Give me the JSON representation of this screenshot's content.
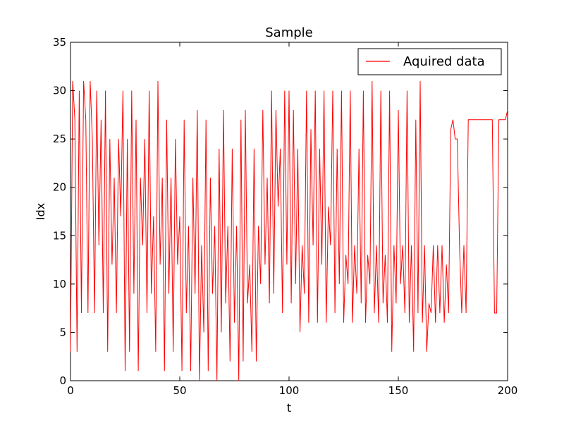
{
  "chart_data": {
    "type": "line",
    "title": "Sample",
    "xlabel": "t",
    "ylabel": "Idx",
    "xlim": [
      0,
      200
    ],
    "ylim": [
      0,
      35
    ],
    "xticks": [
      "0",
      "50",
      "100",
      "150",
      "200"
    ],
    "yticks": [
      "0",
      "5",
      "10",
      "15",
      "20",
      "25",
      "30",
      "35"
    ],
    "grid": false,
    "legend_position": "top-right",
    "line_color": "#ff0000",
    "series": [
      {
        "name": "Aquired data",
        "x": [
          0,
          1,
          2,
          3,
          4,
          5,
          6,
          7,
          8,
          9,
          10,
          11,
          12,
          13,
          14,
          15,
          16,
          17,
          18,
          19,
          20,
          21,
          22,
          23,
          24,
          25,
          26,
          27,
          28,
          29,
          30,
          31,
          32,
          33,
          34,
          35,
          36,
          37,
          38,
          39,
          40,
          41,
          42,
          43,
          44,
          45,
          46,
          47,
          48,
          49,
          50,
          51,
          52,
          53,
          54,
          55,
          56,
          57,
          58,
          59,
          60,
          61,
          62,
          63,
          64,
          65,
          66,
          67,
          68,
          69,
          70,
          71,
          72,
          73,
          74,
          75,
          76,
          77,
          78,
          79,
          80,
          81,
          82,
          83,
          84,
          85,
          86,
          87,
          88,
          89,
          90,
          91,
          92,
          93,
          94,
          95,
          96,
          97,
          98,
          99,
          100,
          101,
          102,
          103,
          104,
          105,
          106,
          107,
          108,
          109,
          110,
          111,
          112,
          113,
          114,
          115,
          116,
          117,
          118,
          119,
          120,
          121,
          122,
          123,
          124,
          125,
          126,
          127,
          128,
          129,
          130,
          131,
          132,
          133,
          134,
          135,
          136,
          137,
          138,
          139,
          140,
          141,
          142,
          143,
          144,
          145,
          146,
          147,
          148,
          149,
          150,
          151,
          152,
          153,
          154,
          155,
          156,
          157,
          158,
          159,
          160,
          161,
          162,
          163,
          164,
          165,
          166,
          167,
          168,
          169,
          170,
          171,
          172,
          173,
          174,
          175,
          176,
          177,
          178,
          179,
          180,
          181,
          182,
          183,
          184,
          185,
          186,
          187,
          188,
          189,
          190,
          191,
          192,
          193,
          194,
          195,
          196,
          197,
          198,
          199,
          200
        ],
        "values": [
          3,
          31,
          27,
          3,
          30,
          7,
          31,
          27,
          7,
          31,
          25,
          7,
          30,
          14,
          27,
          7,
          30,
          3,
          25,
          12,
          21,
          7,
          25,
          17,
          30,
          1,
          25,
          3,
          30,
          9,
          27,
          1,
          21,
          14,
          25,
          7,
          30,
          9,
          17,
          3,
          31,
          12,
          21,
          1,
          27,
          9,
          21,
          3,
          25,
          12,
          17,
          1,
          27,
          7,
          16,
          1,
          21,
          9,
          28,
          0,
          14,
          5,
          27,
          1,
          21,
          9,
          16,
          0,
          24,
          5,
          28,
          8,
          16,
          2,
          24,
          6,
          16,
          0,
          27,
          2,
          28,
          8,
          12,
          3,
          24,
          2,
          16,
          10,
          28,
          12,
          21,
          8,
          30,
          9,
          28,
          18,
          24,
          7,
          30,
          12,
          30,
          8,
          28,
          10,
          24,
          5,
          14,
          9,
          30,
          6,
          26,
          14,
          30,
          6,
          24,
          12,
          30,
          6,
          18,
          14,
          30,
          7,
          24,
          10,
          30,
          6,
          13,
          10,
          30,
          6,
          14,
          9,
          24,
          8,
          30,
          6,
          13,
          10,
          31,
          7,
          14,
          6,
          30,
          8,
          13,
          6,
          30,
          3,
          14,
          8,
          28,
          10,
          14,
          7,
          30,
          6,
          14,
          3,
          27,
          7,
          31,
          6,
          14,
          3,
          8,
          7,
          14,
          6,
          14,
          7,
          14,
          6,
          12,
          7,
          26,
          27,
          25,
          25,
          14,
          7,
          14,
          7,
          27,
          27,
          27,
          27,
          27,
          27,
          27,
          27,
          27,
          27,
          27,
          27,
          7,
          7,
          27,
          27,
          27,
          27,
          28
        ]
      }
    ]
  }
}
